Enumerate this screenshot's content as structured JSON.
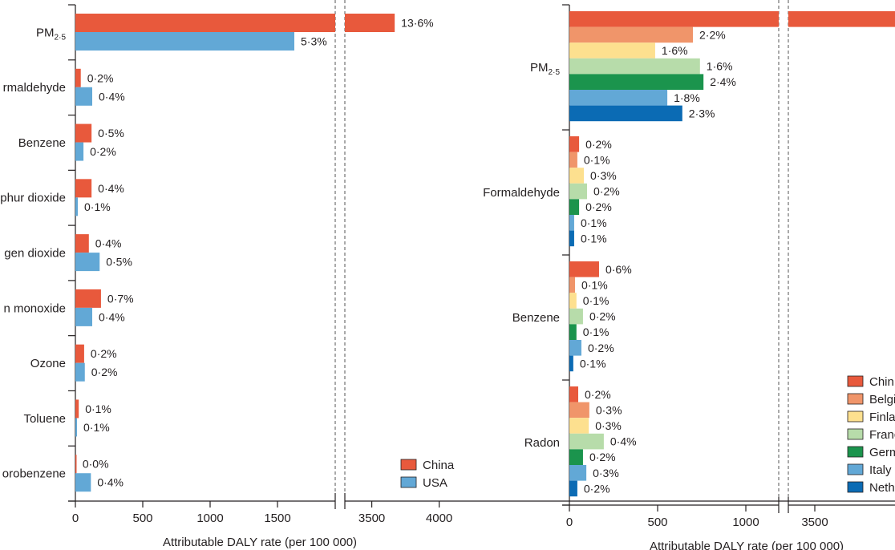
{
  "chart_data": [
    {
      "type": "bar",
      "orientation": "horizontal",
      "categories": [
        "PM2·5",
        "rmaldehyde",
        "Benzene",
        "phur dioxide",
        "gen dioxide",
        "n monoxide",
        "Ozone",
        "Toluene",
        "orobenzene"
      ],
      "category_subscripts": {
        "PM2·5": [
          "PM",
          "2·5"
        ]
      },
      "series": [
        {
          "name": "China",
          "color": "#e8593c",
          "values": [
            3670,
            40,
            120,
            120,
            100,
            190,
            65,
            25,
            5
          ],
          "labels": [
            "13·6%",
            "0·2%",
            "0·5%",
            "0·4%",
            "0·4%",
            "0·7%",
            "0·2%",
            "0·1%",
            "0·0%"
          ]
        },
        {
          "name": "USA",
          "color": "#62a8d6",
          "values": [
            1625,
            125,
            60,
            18,
            180,
            125,
            70,
            12,
            115
          ],
          "labels": [
            "5·3%",
            "0·4%",
            "0·2%",
            "0·1%",
            "0·5%",
            "0·4%",
            "0·2%",
            "0·1%",
            "0·4%"
          ]
        }
      ],
      "xlabel": "Attributable DALY rate (per 100 000)",
      "axis_break": [
        1930,
        3300
      ],
      "xlim": [
        0,
        4000
      ],
      "ticks": [
        {
          "v": 0,
          "t": "0"
        },
        {
          "v": 500,
          "t": "500"
        },
        {
          "v": 1000,
          "t": "1000"
        },
        {
          "v": 1500,
          "t": "1500"
        },
        {
          "v": 3500,
          "t": "3500"
        },
        {
          "v": 4000,
          "t": "4000"
        }
      ],
      "legend": "bottom-right",
      "grid": false
    },
    {
      "type": "bar",
      "orientation": "horizontal",
      "categories": [
        "PM2·5",
        "Formaldehyde",
        "Benzene",
        "Radon"
      ],
      "series": [
        {
          "name": "Chin",
          "color": "#e8593c",
          "values": [
            4000,
            55,
            168,
            50
          ],
          "labels": [
            "",
            "0·2%",
            "0·6%",
            "0·2%"
          ]
        },
        {
          "name": "Belgi",
          "color": "#f0956a",
          "values": [
            700,
            45,
            32,
            113
          ],
          "labels": [
            "2·2%",
            "0·1%",
            "0·1%",
            "0·3%"
          ]
        },
        {
          "name": "Finla",
          "color": "#fde08f",
          "values": [
            486,
            82,
            40,
            110
          ],
          "labels": [
            "1·6%",
            "0·3%",
            "0·1%",
            "0·3%"
          ]
        },
        {
          "name": "Franc",
          "color": "#b7dcaa",
          "values": [
            740,
            100,
            77,
            195
          ],
          "labels": [
            "1·6%",
            "0·2%",
            "0·2%",
            "0·4%"
          ]
        },
        {
          "name": "Germ",
          "color": "#1b944d",
          "values": [
            760,
            55,
            40,
            77
          ],
          "labels": [
            "2·4%",
            "0·2%",
            "0·1%",
            "0·2%"
          ]
        },
        {
          "name": "Italy",
          "color": "#62a8d6",
          "values": [
            555,
            27,
            68,
            96
          ],
          "labels": [
            "1·8%",
            "0·1%",
            "0·2%",
            "0·3%"
          ]
        },
        {
          "name": "Neth",
          "color": "#0b6bb4",
          "values": [
            640,
            27,
            22,
            45
          ],
          "labels": [
            "2·3%",
            "0·1%",
            "0·1%",
            "0·2%"
          ]
        }
      ],
      "xlabel": "Attributable DALY rate (per 100 000)",
      "axis_break": [
        1185,
        3350
      ],
      "ticks": [
        {
          "v": 0,
          "t": "0"
        },
        {
          "v": 500,
          "t": "500"
        },
        {
          "v": 1000,
          "t": "1000"
        },
        {
          "v": 3500,
          "t": "3500"
        }
      ],
      "legend": "bottom-right",
      "grid": false
    }
  ]
}
